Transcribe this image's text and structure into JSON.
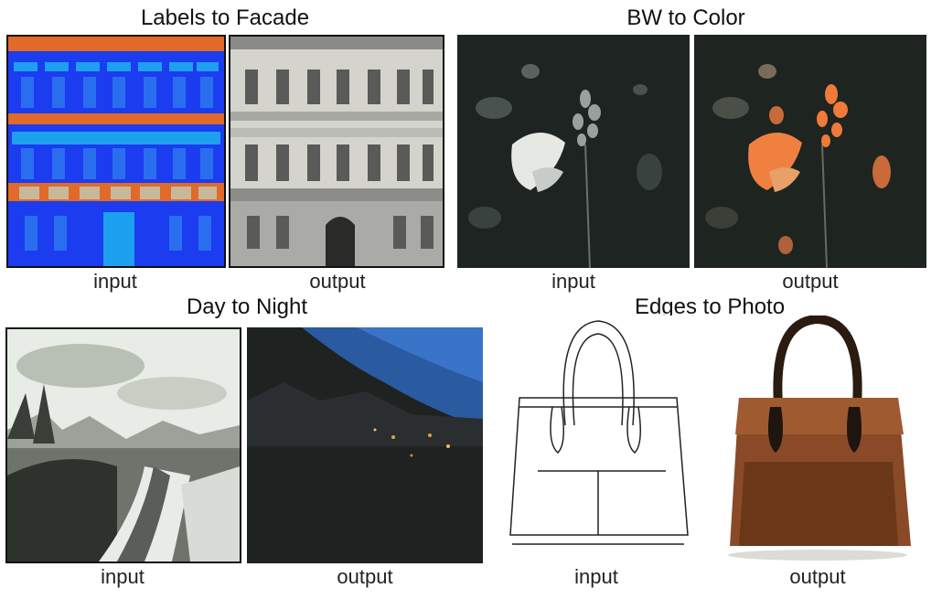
{
  "figure": {
    "sections": [
      {
        "title": "Labels to Facade",
        "input_caption": "input",
        "output_caption": "output"
      },
      {
        "title": "BW to Color",
        "input_caption": "input",
        "output_caption": "output"
      },
      {
        "title": "Day to Night",
        "input_caption": "input",
        "output_caption": "output"
      },
      {
        "title": "Edges to Photo",
        "input_caption": "input",
        "output_caption": "output"
      }
    ]
  },
  "colors": {
    "label_blue": "#1c3cf0",
    "label_orange": "#e06a2a",
    "label_cyan": "#1ea0f0",
    "label_tan": "#c8b89a",
    "butterfly_orange": "#f07a3a",
    "bag_brown": "#8a4a28"
  }
}
